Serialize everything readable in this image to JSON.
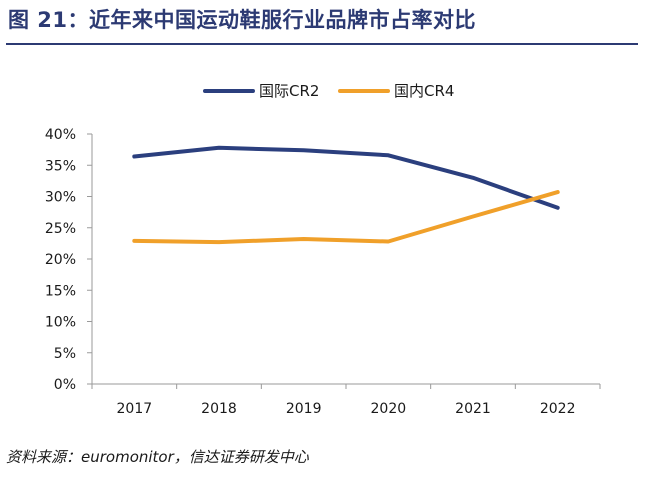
{
  "header": {
    "title": "图 21：近年来中国运动鞋服行业品牌市占率对比"
  },
  "footer": {
    "source": "资料来源：euromonitor，信达证券研发中心"
  },
  "colors": {
    "title": "#2c3a73",
    "series_intl": "#2b3f7e",
    "series_dom": "#f0a02a"
  },
  "chart_data": {
    "type": "line",
    "title": "近年来中国运动鞋服行业品牌市占率对比",
    "x": [
      "2017",
      "2018",
      "2019",
      "2020",
      "2021",
      "2022"
    ],
    "ylim": [
      0,
      40
    ],
    "yticks": [
      "0%",
      "5%",
      "10%",
      "15%",
      "20%",
      "25%",
      "30%",
      "35%",
      "40%"
    ],
    "legend_position": "top-center",
    "series": [
      {
        "name": "国际CR2",
        "color": "#2b3f7e",
        "values": [
          36.4,
          37.8,
          37.4,
          36.6,
          33.0,
          28.2
        ]
      },
      {
        "name": "国内CR4",
        "color": "#f0a02a",
        "values": [
          22.9,
          22.7,
          23.2,
          22.8,
          26.8,
          30.7
        ]
      }
    ]
  }
}
